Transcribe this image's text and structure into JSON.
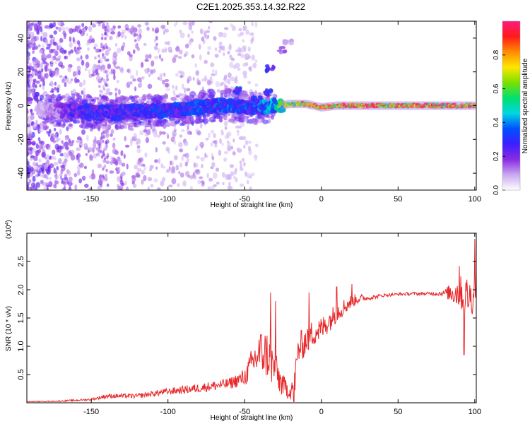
{
  "title": "C2E1.2025.353.14.32.R22",
  "chart_data": [
    {
      "type": "heatmap",
      "name": "spectrogram",
      "xlabel": "Height of straight line (km)",
      "ylabel": "Frequency (Hz)",
      "xlim": [
        -192,
        101
      ],
      "ylim": [
        -50,
        50
      ],
      "x_ticks": [
        -150,
        -100,
        -50,
        0,
        50,
        100
      ],
      "y_ticks": [
        -40,
        -20,
        0,
        20,
        40
      ],
      "x_tick_labels": [
        "-150",
        "-100",
        "-50",
        "0",
        "50",
        "100"
      ],
      "y_tick_labels": [
        "-40",
        "-20",
        "0",
        "20",
        "40"
      ],
      "colorbar": {
        "label": "Normalized spectral amplitude",
        "range": [
          0,
          1
        ],
        "ticks": [
          0.0,
          0.2,
          0.4,
          0.6,
          0.8
        ],
        "tick_labels": [
          "0.0",
          "0.2",
          "0.4",
          "0.6",
          "0.8"
        ],
        "colors": [
          "#ffffff",
          "#c9a8f0",
          "#8a2be2",
          "#3b1fff",
          "#0050ff",
          "#00d7e0",
          "#00e070",
          "#7be000",
          "#ffe600",
          "#ff8c00",
          "#ff1a1a",
          "#ff1a80"
        ]
      },
      "ridge": [
        {
          "x": -180,
          "f": -2,
          "amp": 0.1
        },
        {
          "x": -170,
          "f": -3,
          "amp": 0.18
        },
        {
          "x": -160,
          "f": -3,
          "amp": 0.28
        },
        {
          "x": -150,
          "f": -4,
          "amp": 0.32
        },
        {
          "x": -140,
          "f": -4,
          "amp": 0.3
        },
        {
          "x": -130,
          "f": -4,
          "amp": 0.3
        },
        {
          "x": -120,
          "f": -3,
          "amp": 0.32
        },
        {
          "x": -110,
          "f": -3,
          "amp": 0.32
        },
        {
          "x": -100,
          "f": -3,
          "amp": 0.34
        },
        {
          "x": -90,
          "f": -2,
          "amp": 0.34
        },
        {
          "x": -80,
          "f": -1,
          "amp": 0.34
        },
        {
          "x": -70,
          "f": 0,
          "amp": 0.36
        },
        {
          "x": -60,
          "f": 0,
          "amp": 0.36
        },
        {
          "x": -50,
          "f": -1,
          "amp": 0.36
        },
        {
          "x": -40,
          "f": -1,
          "amp": 0.38
        },
        {
          "x": -30,
          "f": 0,
          "amp": 0.5
        },
        {
          "x": -20,
          "f": 1,
          "amp": 0.75
        },
        {
          "x": -10,
          "f": 1,
          "amp": 0.8
        },
        {
          "x": 0,
          "f": -1,
          "amp": 0.85
        },
        {
          "x": 10,
          "f": 0,
          "amp": 0.85
        },
        {
          "x": 20,
          "f": 0,
          "amp": 0.88
        },
        {
          "x": 40,
          "f": 0,
          "amp": 0.9
        },
        {
          "x": 60,
          "f": 0,
          "amp": 0.9
        },
        {
          "x": 80,
          "f": 0,
          "amp": 0.9
        },
        {
          "x": 100,
          "f": 0,
          "amp": 0.92
        }
      ],
      "features": [
        {
          "x": -55,
          "f": 9,
          "amp": 0.35
        },
        {
          "x": -35,
          "f": 8,
          "amp": 0.35
        },
        {
          "x": -33,
          "f": 22,
          "amp": 0.3
        },
        {
          "x": -25,
          "f": 33,
          "amp": 0.15
        },
        {
          "x": -22,
          "f": 38,
          "amp": 0.12
        },
        {
          "x": -42,
          "f": 4,
          "amp": 0.3
        }
      ]
    },
    {
      "type": "line",
      "name": "snr",
      "xlabel": "Height of straight line (km)",
      "ylabel": "SNR (10 * v/v)",
      "scale_note": "(x10",
      "scale_exp": "4",
      "xlim": [
        -192,
        101
      ],
      "ylim": [
        0,
        3.0
      ],
      "x_ticks": [
        -150,
        -100,
        -50,
        0,
        50,
        100
      ],
      "y_ticks": [
        0.5,
        1.0,
        1.5,
        2.0,
        2.5
      ],
      "x_tick_labels": [
        "-150",
        "-100",
        "-50",
        "0",
        "50",
        "100"
      ],
      "y_tick_labels": [
        "0.5",
        "1.0",
        "1.5",
        "2.0",
        "2.5"
      ],
      "color": "#e8282a",
      "x": [
        -192,
        -170,
        -150,
        -140,
        -120,
        -100,
        -80,
        -60,
        -50,
        -45,
        -40,
        -35,
        -30,
        -25,
        -20,
        -17,
        -15,
        -10,
        -5,
        0,
        5,
        10,
        15,
        20,
        25,
        30,
        40,
        50,
        60,
        70,
        80,
        85,
        90,
        95,
        98,
        101
      ],
      "y": [
        0.02,
        0.03,
        0.06,
        0.12,
        0.12,
        0.2,
        0.26,
        0.34,
        0.45,
        0.7,
        0.9,
        0.85,
        0.55,
        0.3,
        0.2,
        0.45,
        0.95,
        1.1,
        1.25,
        1.3,
        1.45,
        1.6,
        1.7,
        1.8,
        1.85,
        1.85,
        1.9,
        1.92,
        1.93,
        1.93,
        1.94,
        1.95,
        1.95,
        1.9,
        1.85,
        2.0
      ],
      "noise": [
        0.005,
        0.01,
        0.02,
        0.04,
        0.04,
        0.06,
        0.08,
        0.1,
        0.15,
        0.3,
        0.4,
        0.45,
        0.35,
        0.2,
        0.15,
        0.3,
        0.3,
        0.25,
        0.25,
        0.22,
        0.2,
        0.18,
        0.15,
        0.12,
        0.08,
        0.04,
        0.03,
        0.025,
        0.03,
        0.03,
        0.05,
        0.2,
        0.3,
        0.35,
        0.3,
        0.4
      ],
      "spikes": [
        {
          "x": -33,
          "y": 1.95
        },
        {
          "x": -30,
          "y": 1.8
        },
        {
          "x": -18,
          "y": 0.02
        },
        {
          "x": -8,
          "y": 1.95
        },
        {
          "x": 10,
          "y": 2.05
        },
        {
          "x": 20,
          "y": 2.1
        },
        {
          "x": 93,
          "y": 0.85
        },
        {
          "x": 90,
          "y": 2.42
        },
        {
          "x": 100,
          "y": 2.9
        }
      ]
    }
  ]
}
